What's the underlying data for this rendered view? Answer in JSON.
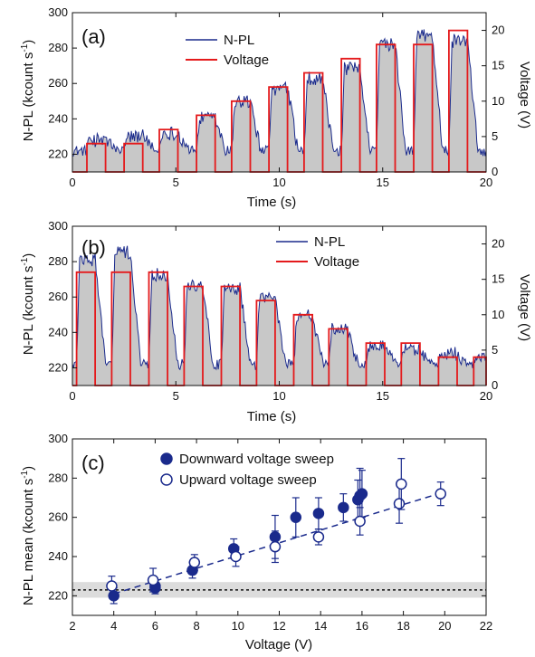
{
  "chart_data": [
    {
      "panel": "(a)",
      "type": "area",
      "xlabel": "Time (s)",
      "ylabel": "N-PL  (kcount s-1)",
      "y2label": "Voltage (V)",
      "xlim": [
        0,
        20
      ],
      "ylim": [
        210,
        300
      ],
      "y2lim": [
        0,
        22.5
      ],
      "xticks": [
        0,
        5,
        10,
        15,
        20
      ],
      "yticks": [
        220,
        240,
        260,
        280,
        300
      ],
      "y2ticks": [
        0,
        5,
        10,
        15,
        20
      ],
      "legend": [
        "N-PL",
        "Voltage"
      ],
      "legend_position": "top-center",
      "colors": {
        "npl": "#1a2a8c",
        "voltage": "#e41a1c",
        "fill": "#c8c8c8"
      },
      "voltage_steps": [
        {
          "on": 0.7,
          "off": 1.6,
          "v": 4
        },
        {
          "on": 2.5,
          "off": 3.4,
          "v": 4
        },
        {
          "on": 4.2,
          "off": 5.1,
          "v": 6
        },
        {
          "on": 6.0,
          "off": 6.9,
          "v": 8
        },
        {
          "on": 7.7,
          "off": 8.6,
          "v": 10
        },
        {
          "on": 9.5,
          "off": 10.4,
          "v": 12
        },
        {
          "on": 11.2,
          "off": 12.1,
          "v": 14
        },
        {
          "on": 13.0,
          "off": 13.9,
          "v": 16
        },
        {
          "on": 14.7,
          "off": 15.6,
          "v": 18
        },
        {
          "on": 16.5,
          "off": 17.4,
          "v": 18
        },
        {
          "on": 18.2,
          "off": 19.1,
          "v": 20
        }
      ],
      "npl_base": 222,
      "npl_peaks": [
        228,
        230,
        232,
        240,
        250,
        257,
        263,
        268,
        282,
        287,
        284
      ]
    },
    {
      "panel": "(b)",
      "type": "area",
      "xlabel": "Time (s)",
      "ylabel": "N-PL  (kcount s-1)",
      "y2label": "Voltage (V)",
      "xlim": [
        0,
        20
      ],
      "ylim": [
        210,
        300
      ],
      "y2lim": [
        0,
        22.5
      ],
      "xticks": [
        0,
        5,
        10,
        15,
        20
      ],
      "yticks": [
        220,
        240,
        260,
        280,
        300
      ],
      "y2ticks": [
        0,
        5,
        10,
        15,
        20
      ],
      "legend": [
        "N-PL",
        "Voltage"
      ],
      "legend_position": "top-center",
      "colors": {
        "npl": "#1a2a8c",
        "voltage": "#e41a1c",
        "fill": "#c8c8c8"
      },
      "voltage_steps": [
        {
          "on": 0.2,
          "off": 1.1,
          "v": 16
        },
        {
          "on": 1.9,
          "off": 2.8,
          "v": 16
        },
        {
          "on": 3.7,
          "off": 4.6,
          "v": 16
        },
        {
          "on": 5.4,
          "off": 6.3,
          "v": 14
        },
        {
          "on": 7.2,
          "off": 8.1,
          "v": 14
        },
        {
          "on": 8.9,
          "off": 9.8,
          "v": 12
        },
        {
          "on": 10.7,
          "off": 11.6,
          "v": 10
        },
        {
          "on": 12.4,
          "off": 13.3,
          "v": 8
        },
        {
          "on": 14.2,
          "off": 15.1,
          "v": 6
        },
        {
          "on": 15.9,
          "off": 16.8,
          "v": 6
        },
        {
          "on": 17.7,
          "off": 18.6,
          "v": 4
        },
        {
          "on": 19.4,
          "off": 20.0,
          "v": 4
        }
      ],
      "npl_base": 222,
      "npl_peaks": [
        281,
        285,
        273,
        267,
        265,
        260,
        250,
        242,
        232,
        230,
        228,
        226
      ]
    },
    {
      "panel": "(c)",
      "type": "scatter",
      "xlabel": "Voltage (V)",
      "ylabel": "N-PL mean  (kcount s-1)",
      "xlim": [
        2,
        22
      ],
      "ylim": [
        210,
        300
      ],
      "xticks": [
        2,
        4,
        6,
        8,
        10,
        12,
        14,
        16,
        18,
        20,
        22
      ],
      "yticks": [
        220,
        240,
        260,
        280,
        300
      ],
      "legend_position": "top-left",
      "baseline": {
        "y": 223,
        "band": [
          219,
          227
        ]
      },
      "fit_line": {
        "x": [
          4,
          20
        ],
        "y": [
          221,
          273
        ]
      },
      "colors": {
        "markers": "#1a2a8c",
        "band": "#dcdcdc"
      },
      "series": [
        {
          "name": "Downward voltage sweep",
          "marker": "filled-circle",
          "x": [
            4,
            6,
            6,
            7.8,
            9.8,
            11.8,
            12.8,
            13.9,
            15.1,
            15.8,
            15.9,
            16.0
          ],
          "y": [
            220,
            225,
            224,
            233,
            244,
            250,
            260,
            262,
            265,
            269,
            271,
            272
          ],
          "err": [
            4,
            3,
            3,
            4,
            5,
            11,
            10,
            8,
            7,
            10,
            14,
            12
          ]
        },
        {
          "name": "Upward voltage sweep",
          "marker": "open-circle",
          "x": [
            3.9,
            5.9,
            7.9,
            9.9,
            11.8,
            13.9,
            15.9,
            17.8,
            17.9,
            19.8
          ],
          "y": [
            225,
            228,
            237,
            240,
            245,
            250,
            258,
            267,
            277,
            272
          ],
          "err": [
            5,
            6,
            4,
            5,
            8,
            4,
            7,
            10,
            13,
            6
          ]
        }
      ]
    }
  ]
}
